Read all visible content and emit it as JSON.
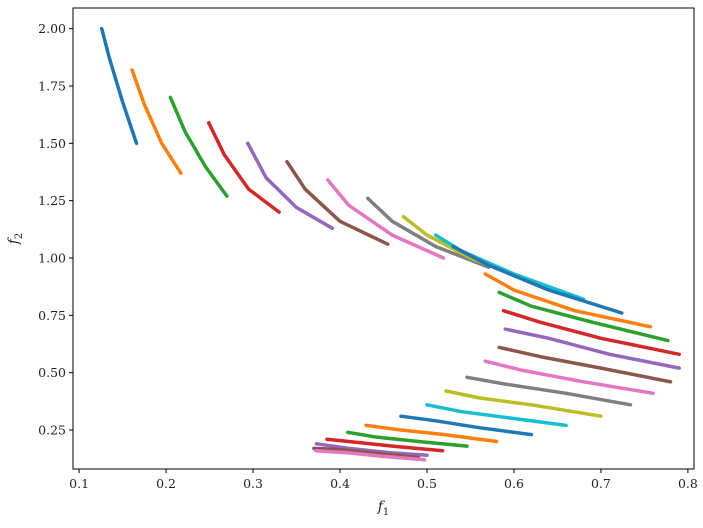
{
  "chart_data": {
    "type": "line",
    "xlabel": "f",
    "xlabel_sub": "1",
    "ylabel": "f",
    "ylabel_sub": "2",
    "xlim": [
      0.093,
      0.807
    ],
    "ylim": [
      0.08,
      2.09
    ],
    "xticks": [
      0.1,
      0.2,
      0.3,
      0.4,
      0.5,
      0.6,
      0.7,
      0.8
    ],
    "yticks": [
      0.25,
      0.5,
      0.75,
      1.0,
      1.25,
      1.5,
      1.75,
      2.0
    ],
    "xtick_labels": [
      "0.1",
      "0.2",
      "0.3",
      "0.4",
      "0.5",
      "0.6",
      "0.7",
      "0.8"
    ],
    "ytick_labels": [
      "0.25",
      "0.50",
      "0.75",
      "1.00",
      "1.25",
      "1.50",
      "1.75",
      "2.00"
    ],
    "grid": false,
    "series": [
      {
        "color": "#1f77b4",
        "x": [
          0.126,
          0.135,
          0.15,
          0.166
        ],
        "y": [
          2.0,
          1.87,
          1.68,
          1.5
        ]
      },
      {
        "color": "#ff7f0e",
        "x": [
          0.161,
          0.175,
          0.195,
          0.217
        ],
        "y": [
          1.82,
          1.67,
          1.5,
          1.37
        ]
      },
      {
        "color": "#2ca02c",
        "x": [
          0.205,
          0.222,
          0.245,
          0.27
        ],
        "y": [
          1.7,
          1.55,
          1.4,
          1.27
        ]
      },
      {
        "color": "#d62728",
        "x": [
          0.249,
          0.267,
          0.295,
          0.33
        ],
        "y": [
          1.59,
          1.45,
          1.3,
          1.2
        ]
      },
      {
        "color": "#9467bd",
        "x": [
          0.294,
          0.315,
          0.35,
          0.391
        ],
        "y": [
          1.5,
          1.35,
          1.22,
          1.13
        ]
      },
      {
        "color": "#8c564b",
        "x": [
          0.339,
          0.36,
          0.4,
          0.455
        ],
        "y": [
          1.42,
          1.3,
          1.16,
          1.06
        ]
      },
      {
        "color": "#e377c2",
        "x": [
          0.386,
          0.41,
          0.46,
          0.519
        ],
        "y": [
          1.34,
          1.23,
          1.1,
          1.0
        ]
      },
      {
        "color": "#7f7f7f",
        "x": [
          0.432,
          0.46,
          0.51,
          0.571
        ],
        "y": [
          1.26,
          1.16,
          1.05,
          0.96
        ]
      },
      {
        "color": "#bcbd22",
        "x": [
          0.473,
          0.5,
          0.55,
          0.62
        ],
        "y": [
          1.18,
          1.1,
          1.0,
          0.9
        ]
      },
      {
        "color": "#17becf",
        "x": [
          0.51,
          0.54,
          0.6,
          0.68
        ],
        "y": [
          1.1,
          1.03,
          0.93,
          0.82
        ]
      },
      {
        "color": "#1f77b4",
        "x": [
          0.53,
          0.57,
          0.64,
          0.724
        ],
        "y": [
          1.05,
          0.97,
          0.86,
          0.76
        ]
      },
      {
        "color": "#ff7f0e",
        "x": [
          0.567,
          0.6,
          0.67,
          0.757
        ],
        "y": [
          0.93,
          0.86,
          0.77,
          0.7
        ]
      },
      {
        "color": "#2ca02c",
        "x": [
          0.583,
          0.62,
          0.69,
          0.777
        ],
        "y": [
          0.85,
          0.79,
          0.72,
          0.64
        ]
      },
      {
        "color": "#d62728",
        "x": [
          0.588,
          0.63,
          0.7,
          0.79
        ],
        "y": [
          0.77,
          0.72,
          0.65,
          0.58
        ]
      },
      {
        "color": "#9467bd",
        "x": [
          0.59,
          0.64,
          0.71,
          0.79
        ],
        "y": [
          0.69,
          0.65,
          0.58,
          0.52
        ]
      },
      {
        "color": "#8c564b",
        "x": [
          0.583,
          0.63,
          0.7,
          0.78
        ],
        "y": [
          0.61,
          0.57,
          0.52,
          0.46
        ]
      },
      {
        "color": "#e377c2",
        "x": [
          0.567,
          0.61,
          0.68,
          0.76
        ],
        "y": [
          0.55,
          0.51,
          0.46,
          0.41
        ]
      },
      {
        "color": "#7f7f7f",
        "x": [
          0.546,
          0.59,
          0.66,
          0.734
        ],
        "y": [
          0.48,
          0.45,
          0.41,
          0.36
        ]
      },
      {
        "color": "#bcbd22",
        "x": [
          0.522,
          0.56,
          0.62,
          0.7
        ],
        "y": [
          0.42,
          0.39,
          0.36,
          0.31
        ]
      },
      {
        "color": "#17becf",
        "x": [
          0.5,
          0.54,
          0.6,
          0.66
        ],
        "y": [
          0.36,
          0.33,
          0.3,
          0.27
        ]
      },
      {
        "color": "#1f77b4",
        "x": [
          0.47,
          0.51,
          0.56,
          0.62
        ],
        "y": [
          0.31,
          0.29,
          0.26,
          0.23
        ]
      },
      {
        "color": "#ff7f0e",
        "x": [
          0.43,
          0.47,
          0.52,
          0.58
        ],
        "y": [
          0.27,
          0.25,
          0.23,
          0.2
        ]
      },
      {
        "color": "#2ca02c",
        "x": [
          0.409,
          0.44,
          0.49,
          0.546
        ],
        "y": [
          0.24,
          0.22,
          0.2,
          0.18
        ]
      },
      {
        "color": "#d62728",
        "x": [
          0.385,
          0.41,
          0.46,
          0.518
        ],
        "y": [
          0.21,
          0.2,
          0.18,
          0.16
        ]
      },
      {
        "color": "#9467bd",
        "x": [
          0.373,
          0.41,
          0.46,
          0.5
        ],
        "y": [
          0.19,
          0.17,
          0.15,
          0.14
        ]
      },
      {
        "color": "#8c564b",
        "x": [
          0.37,
          0.4,
          0.45,
          0.49
        ],
        "y": [
          0.17,
          0.165,
          0.145,
          0.13
        ]
      },
      {
        "color": "#e377c2",
        "x": [
          0.372,
          0.41,
          0.45,
          0.497
        ],
        "y": [
          0.16,
          0.15,
          0.135,
          0.12
        ]
      }
    ]
  }
}
